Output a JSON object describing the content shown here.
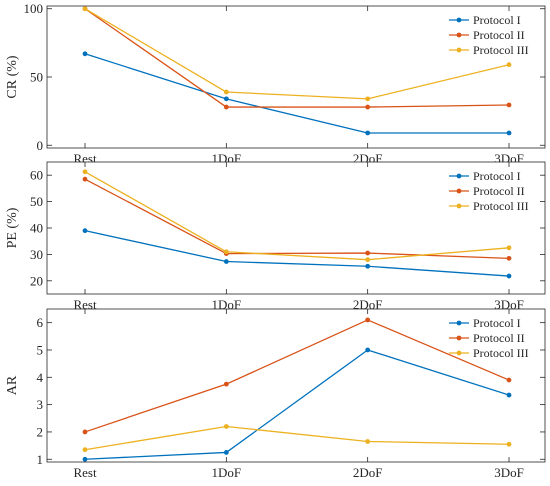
{
  "chart_data": [
    {
      "type": "line",
      "ylabel": "CR (%)",
      "categories": [
        "Rest",
        "1DoF",
        "2DoF",
        "3DoF"
      ],
      "ylim": [
        -2,
        102
      ],
      "yticks": [
        0,
        50,
        100
      ],
      "legend_position": "top-right",
      "series": [
        {
          "name": "Protocol I",
          "values": [
            67,
            34,
            9,
            9
          ]
        },
        {
          "name": "Protocol II",
          "values": [
            100,
            28,
            28,
            29.5
          ]
        },
        {
          "name": "Protocol III",
          "values": [
            100,
            39,
            34,
            59
          ]
        }
      ]
    },
    {
      "type": "line",
      "ylabel": "PE (%)",
      "categories": [
        "Rest",
        "1DoF",
        "2DoF",
        "3DoF"
      ],
      "ylim": [
        15,
        65
      ],
      "yticks": [
        20,
        30,
        40,
        50,
        60
      ],
      "legend_position": "top-right",
      "series": [
        {
          "name": "Protocol I",
          "values": [
            39,
            27.3,
            25.5,
            21.8
          ]
        },
        {
          "name": "Protocol II",
          "values": [
            58.5,
            30.3,
            30.5,
            28.5
          ]
        },
        {
          "name": "Protocol III",
          "values": [
            61.3,
            31,
            28,
            32.5
          ]
        }
      ]
    },
    {
      "type": "line",
      "ylabel": "AR",
      "categories": [
        "Rest",
        "1DoF",
        "2DoF",
        "3DoF"
      ],
      "ylim": [
        0.9,
        6.5
      ],
      "yticks": [
        1,
        2,
        3,
        4,
        5,
        6
      ],
      "legend_position": "top-right",
      "series": [
        {
          "name": "Protocol I",
          "values": [
            1,
            1.25,
            5,
            3.35
          ]
        },
        {
          "name": "Protocol II",
          "values": [
            2,
            3.75,
            6.1,
            3.9
          ]
        },
        {
          "name": "Protocol III",
          "values": [
            1.35,
            2.2,
            1.65,
            1.55
          ]
        }
      ]
    }
  ],
  "colors": {
    "Protocol I": "#0072BD",
    "Protocol II": "#D95319",
    "Protocol III": "#EDB120"
  }
}
